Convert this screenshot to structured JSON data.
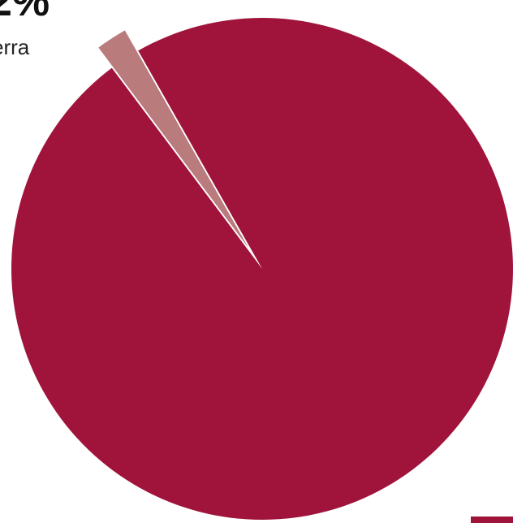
{
  "chart_data": {
    "type": "pie",
    "slices": [
      {
        "name": "",
        "value": 98,
        "color": "#a0143c"
      },
      {
        "name": "erra",
        "value": 2,
        "color": "#b97b7b",
        "label": "2%",
        "exploded": true
      }
    ],
    "title": "",
    "legend": "bottom-right"
  },
  "labels": {
    "small_slice_percent": "2%",
    "small_slice_name": "erra"
  }
}
